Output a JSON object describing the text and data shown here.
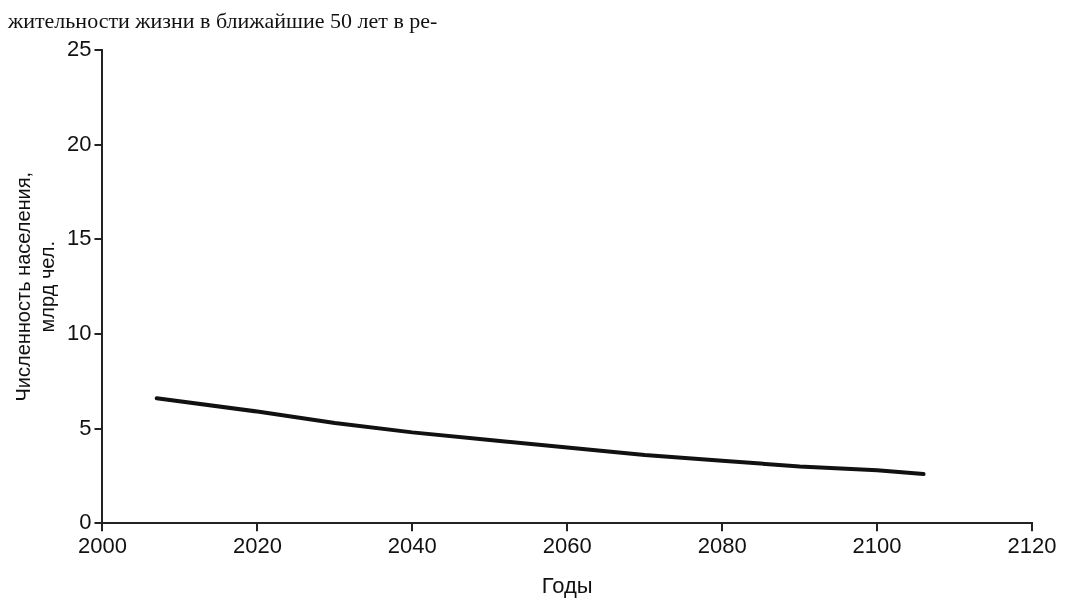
{
  "chart_data": {
    "type": "line",
    "xlabel": "Годы",
    "ylabel": "Численность населения,\nмлрд чел.",
    "annotations": [
      "жительности жизни в ближайшие 50 лет в ре-"
    ],
    "x": [
      2007,
      2020,
      2030,
      2040,
      2050,
      2060,
      2070,
      2080,
      2090,
      2100,
      2106
    ],
    "series": [
      {
        "color": "#111111",
        "values": [
          6.6,
          5.9,
          5.3,
          4.8,
          4.4,
          4.0,
          3.6,
          3.3,
          3.0,
          2.8,
          2.6
        ]
      }
    ],
    "xlim": [
      2000,
      2120
    ],
    "xticks": [
      2000,
      2020,
      2040,
      2060,
      2080,
      2100,
      2120
    ],
    "ylim": [
      0,
      25
    ],
    "yticks": [
      0,
      5,
      10,
      15,
      20,
      25
    ],
    "grid": false,
    "legend": false,
    "marker": "none",
    "line_style": "solid"
  }
}
